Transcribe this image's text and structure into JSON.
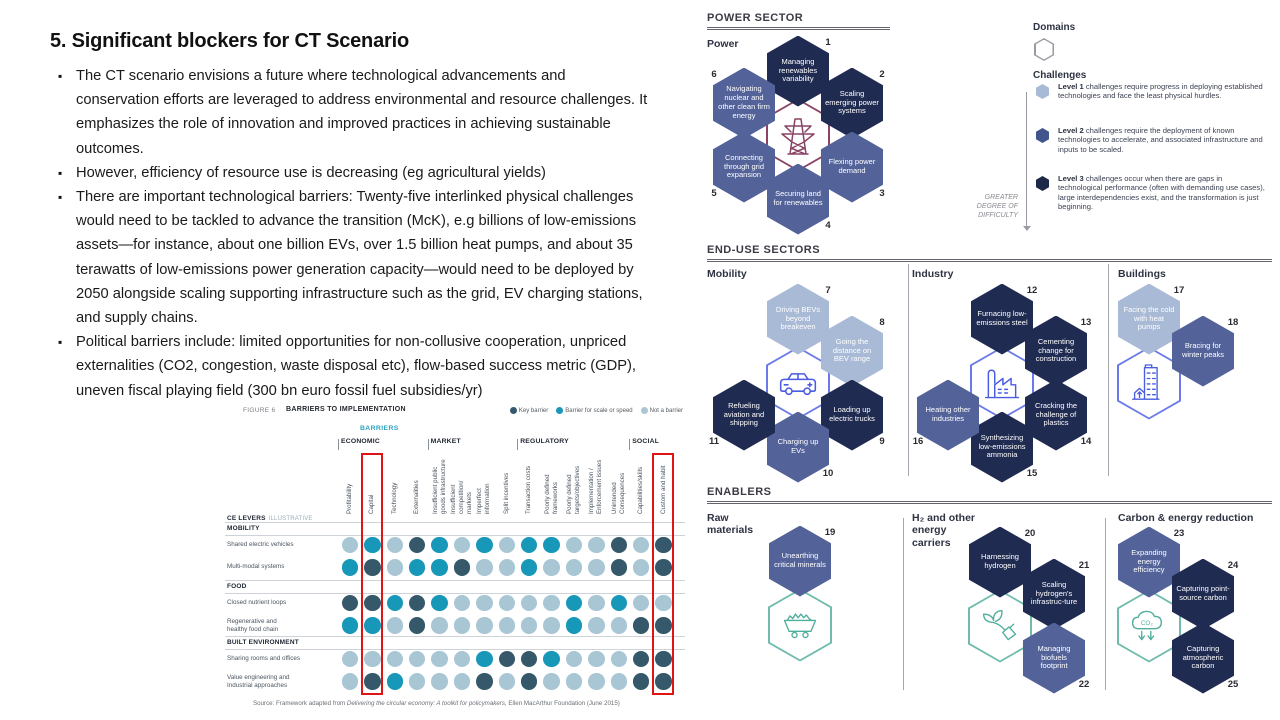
{
  "slide": {
    "title": "5. Significant blockers for CT Scenario",
    "bullets": [
      "The CT scenario envisions a future where technological advancements and conservation efforts are leveraged to address environmental and resource challenges. It emphasizes the role of innovation and improved practices in achieving sustainable outcomes.",
      "However, efficiency of resource use is decreasing (eg agricultural yields)",
      "There are important technological barriers: Twenty-five interlinked physical challenges would need to be tackled to advance the transition (McK), e.g billions of low-emissions assets—for instance, about one billion EVs, over 1.5 billion heat pumps, and about 35 terawatts of low-emissions power generation capacity—would need to be deployed by 2050 alongside scaling supporting infrastructure such as the grid, EV charging stations, and supply chains.",
      "Political barriers include: limited opportunities for non-collusive cooperation, unpriced externalities (CO2, congestion, waste disposal etc), flow-based success metric (GDP), uneven fiscal playing field (300 bn euro fossil fuel subsidies/yr)"
    ]
  },
  "figure": {
    "label": "FIGURE 6",
    "title": "BARRIERS TO IMPLEMENTATION",
    "legend": [
      {
        "label": "Key barrier",
        "key": "k",
        "color": "#35596b"
      },
      {
        "label": "Barrier for scale or speed",
        "key": "s",
        "color": "#1798b8"
      },
      {
        "label": "Not a barrier",
        "key": "n",
        "color": "#a9c6d4"
      }
    ],
    "barriers_label": "BARRIERS",
    "row_axis": {
      "bold": "CE LEVERS",
      "light": "ILLUSTRATIVE"
    },
    "groups": [
      {
        "label": "ECONOMIC",
        "cols": [
          "Profitability",
          "Capital",
          "Technology",
          "Externalities"
        ]
      },
      {
        "label": "MARKET",
        "cols": [
          "Insufficient public\ngoods infrastructure",
          "Insufficient\ncompetition/\nmarkets",
          "Imperfect\ninformation",
          "Split incentives"
        ]
      },
      {
        "label": "REGULATORY",
        "cols": [
          "Transaction costs",
          "Poorly defined\nframeworks",
          "Poorly defined\ntargets/objectives",
          "Implementation /\nEnforcement issues",
          "Unintended\nConsequences"
        ]
      },
      {
        "label": "SOCIAL",
        "cols": [
          "Capabilities/skills",
          "Custom and habit"
        ]
      }
    ],
    "highlighted_column_indices": [
      1,
      14
    ],
    "highlight_color": "#e01414",
    "sections": [
      {
        "label": "MOBILITY",
        "rows": [
          {
            "label": "Shared electric vehicles",
            "dots": [
              "n",
              "s",
              "n",
              "k",
              "s",
              "n",
              "s",
              "n",
              "s",
              "s",
              "n",
              "n",
              "k",
              "n",
              "k"
            ]
          },
          {
            "label": "Multi-modal systems",
            "dots": [
              "s",
              "k",
              "n",
              "s",
              "s",
              "k",
              "n",
              "n",
              "s",
              "n",
              "n",
              "n",
              "k",
              "n",
              "k"
            ]
          }
        ]
      },
      {
        "label": "FOOD",
        "rows": [
          {
            "label": "Closed nutrient loops",
            "dots": [
              "k",
              "k",
              "s",
              "k",
              "s",
              "n",
              "n",
              "n",
              "n",
              "n",
              "s",
              "n",
              "s",
              "n",
              "n"
            ]
          },
          {
            "label": "Regenerative and\nhealthy food chain",
            "dots": [
              "s",
              "s",
              "n",
              "k",
              "n",
              "n",
              "n",
              "n",
              "n",
              "n",
              "s",
              "n",
              "n",
              "k",
              "k"
            ]
          }
        ]
      },
      {
        "label": "BUILT ENVIRONMENT",
        "rows": [
          {
            "label": "Sharing rooms and offices",
            "dots": [
              "n",
              "n",
              "n",
              "n",
              "n",
              "n",
              "s",
              "k",
              "k",
              "s",
              "n",
              "n",
              "n",
              "k",
              "k"
            ]
          },
          {
            "label": "Value engineering and\nIndustrial approaches",
            "dots": [
              "n",
              "k",
              "s",
              "n",
              "n",
              "n",
              "k",
              "n",
              "k",
              "n",
              "n",
              "n",
              "n",
              "k",
              "k"
            ]
          }
        ]
      }
    ],
    "source": {
      "prefix": "Source: Framework adapted from ",
      "italic": "Delivering the circular economy: A toolkit for policymakers,",
      "suffix": " Ellen MacArthur Foundation (June 2015)"
    }
  },
  "panel": {
    "colors": {
      "level1": "#a9bad6",
      "level2": "#53639a",
      "level3": "#202b52"
    },
    "power": {
      "header": "POWER SECTOR",
      "group_label": "Power",
      "cluster": {
        "icon": "transmission-tower-icon",
        "style": "purple",
        "hexes": [
          {
            "num": "1",
            "label": "Managing renewables variability",
            "level": 3,
            "pos": "n"
          },
          {
            "num": "2",
            "label": "Scaling emerging power systems",
            "level": 3,
            "pos": "ne"
          },
          {
            "num": "3",
            "label": "Flexing power demand",
            "level": 2,
            "pos": "se"
          },
          {
            "num": "4",
            "label": "Securing land for renewables",
            "level": 2,
            "pos": "s"
          },
          {
            "num": "5",
            "label": "Connecting through grid expansion",
            "level": 2,
            "pos": "sw"
          },
          {
            "num": "6",
            "label": "Navigating nuclear and other clean firm energy",
            "level": 2,
            "pos": "nw"
          }
        ]
      }
    },
    "legend": {
      "domains_label": "Domains",
      "challenges_label": "Challenges",
      "levels": [
        {
          "name": "Level 1",
          "text": "challenges require progress in deploying established technologies and face the least physical hurdles.",
          "color": "#a9bad6"
        },
        {
          "name": "Level 2",
          "text": "challenges require the deployment of known technologies to accelerate, and associated infrastructure and inputs to be scaled.",
          "color": "#41548c"
        },
        {
          "name": "Level 3",
          "text": "challenges occur when there are gaps in technological performance (often with demanding use cases), large interdependencies exist, and the transformation is just beginning.",
          "color": "#1d2947"
        }
      ],
      "difficulty_label": "GREATER\nDEGREE OF\nDIFFICULTY"
    },
    "end_use": {
      "header": "END-USE SECTORS",
      "groups": [
        {
          "label": "Mobility",
          "cluster": {
            "icon": "car-icon",
            "style": "blue",
            "hexes": [
              {
                "num": "7",
                "label": "Driving BEVs beyond breakeven",
                "level": 1,
                "pos": "n"
              },
              {
                "num": "8",
                "label": "Going the distance on BEV range",
                "level": 1,
                "pos": "ne"
              },
              {
                "num": "9",
                "label": "Loading up electric trucks",
                "level": 3,
                "pos": "se"
              },
              {
                "num": "10",
                "label": "Charging up EVs",
                "level": 2,
                "pos": "s"
              },
              {
                "num": "11",
                "label": "Refueling aviation and shipping",
                "level": 3,
                "pos": "sw"
              }
            ]
          }
        },
        {
          "label": "Industry",
          "cluster": {
            "icon": "factory-icon",
            "style": "blue",
            "hexes": [
              {
                "num": "12",
                "label": "Furnacing low-emissions steel",
                "level": 3,
                "pos": "n"
              },
              {
                "num": "13",
                "label": "Cementing change for construction",
                "level": 3,
                "pos": "ne"
              },
              {
                "num": "14",
                "label": "Cracking the challenge of plastics",
                "level": 3,
                "pos": "se"
              },
              {
                "num": "15",
                "label": "Synthesizing low-emissions ammonia",
                "level": 3,
                "pos": "s"
              },
              {
                "num": "16",
                "label": "Heating other industries",
                "level": 2,
                "pos": "sw"
              }
            ]
          }
        },
        {
          "label": "Buildings",
          "cluster": {
            "icon": "buildings-icon",
            "style": "blue",
            "hexes": [
              {
                "num": "17",
                "label": "Facing the cold with heat pumps",
                "level": 1,
                "pos": "n"
              },
              {
                "num": "18",
                "label": "Bracing for winter peaks",
                "level": 2,
                "pos": "ne"
              }
            ]
          }
        }
      ]
    },
    "enablers": {
      "header": "ENABLERS",
      "groups": [
        {
          "label": "Raw\nmaterials",
          "cluster": {
            "icon": "minecart-icon",
            "style": "teal",
            "hexes": [
              {
                "num": "19",
                "label": "Unearthing critical minerals",
                "level": 2,
                "pos": "n"
              }
            ]
          }
        },
        {
          "label": "H₂ and other\nenergy\ncarriers",
          "cluster": {
            "icon": "biofuel-icon",
            "style": "teal",
            "hexes": [
              {
                "num": "20",
                "label": "Harnessing hydrogen",
                "level": 3,
                "pos": "n"
              },
              {
                "num": "21",
                "label": "Scaling hydrogen's infrastruc-ture",
                "level": 3,
                "pos": "ne"
              },
              {
                "num": "22",
                "label": "Managing biofuels footprint",
                "level": 2,
                "pos": "se"
              }
            ]
          }
        },
        {
          "label": "Carbon & energy reduction",
          "cluster": {
            "icon": "co2-capture-icon",
            "style": "teal",
            "hexes": [
              {
                "num": "23",
                "label": "Expanding energy efficiency",
                "level": 2,
                "pos": "n"
              },
              {
                "num": "24",
                "label": "Capturing point-source carbon",
                "level": 3,
                "pos": "ne"
              },
              {
                "num": "25",
                "label": "Capturing atmospheric carbon",
                "level": 3,
                "pos": "se"
              }
            ]
          }
        }
      ]
    }
  }
}
